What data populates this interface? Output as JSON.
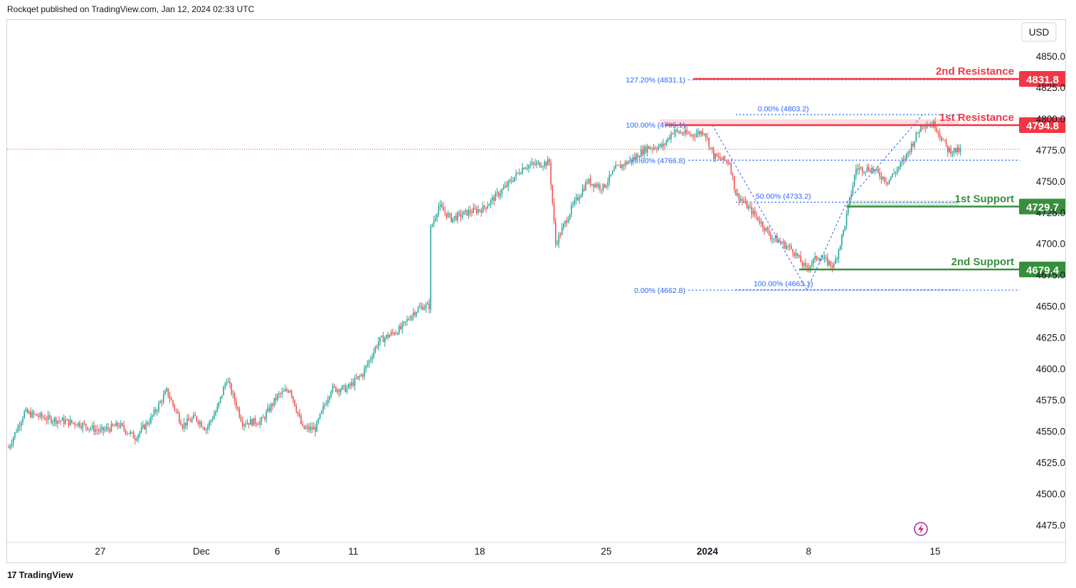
{
  "header": {
    "text": "Rockqet published on TradingView.com, Jan 12, 2024 02:33 UTC"
  },
  "footer": {
    "brand": "TradingView"
  },
  "colors": {
    "up": "#26a69a",
    "down": "#ef5350",
    "resistance": "#f23645",
    "support": "#388e3c",
    "fib": "#2962ff",
    "axis_text": "#131722"
  },
  "chart_data": {
    "type": "candlestick",
    "currency": "USD",
    "y_ticks": [
      "4850.0",
      "4825.0",
      "4800.0",
      "4775.0",
      "4750.0",
      "4725.0",
      "4700.0",
      "4675.0",
      "4650.0",
      "4625.0",
      "4600.0",
      "4575.0",
      "4550.0",
      "4525.0",
      "4500.0",
      "4475.0"
    ],
    "ylim": [
      4461,
      4879
    ],
    "x_ticks": [
      {
        "label": "27",
        "bold": false,
        "index": 58
      },
      {
        "label": "Dec",
        "bold": false,
        "index": 122
      },
      {
        "label": "6",
        "bold": false,
        "index": 170
      },
      {
        "label": "11",
        "bold": false,
        "index": 218
      },
      {
        "label": "18",
        "bold": false,
        "index": 298
      },
      {
        "label": "25",
        "bold": false,
        "index": 378
      },
      {
        "label": "2024",
        "bold": true,
        "index": 442
      },
      {
        "label": "8",
        "bold": false,
        "index": 506
      },
      {
        "label": "15",
        "bold": false,
        "index": 586
      }
    ],
    "xlim": [
      0,
      640
    ],
    "current_price": 4775.5,
    "levels": [
      {
        "name": "2nd Resistance",
        "value": 4831.8,
        "label": "4831.8",
        "type": "resistance",
        "start": 433
      },
      {
        "name": "1st Resistance",
        "value": 4794.8,
        "label": "4794.8",
        "type": "resistance",
        "start": 415
      },
      {
        "name": "1st Support",
        "value": 4729.7,
        "label": "4729.7",
        "type": "support",
        "start": 530
      },
      {
        "name": "2nd Support",
        "value": 4679.4,
        "label": "4679.4",
        "type": "support",
        "start": 500
      }
    ],
    "fib_left": [
      {
        "label": "127.20% (4831.1)",
        "value": 4831.1
      },
      {
        "label": "100.00% (4795.1)",
        "value": 4795.1
      },
      {
        "label": "78.60% (4766.8)",
        "value": 4766.8
      },
      {
        "label": "0.00% (4662.8)",
        "value": 4662.8
      }
    ],
    "fib_right": [
      {
        "label": "0.00% (4803.2)",
        "value": 4803.2
      },
      {
        "label": "50.00% (4733.2)",
        "value": 4733.2
      },
      {
        "label": "100.00% (4663.1)",
        "value": 4663.1
      }
    ],
    "resistance_zone": [
      4794.8,
      4799.5
    ],
    "support_zone": [
      4729.7,
      4734.5
    ],
    "anchors": [
      {
        "index": 0,
        "price": 4537
      },
      {
        "index": 10,
        "price": 4565
      },
      {
        "index": 25,
        "price": 4560
      },
      {
        "index": 45,
        "price": 4556
      },
      {
        "index": 58,
        "price": 4550
      },
      {
        "index": 70,
        "price": 4555
      },
      {
        "index": 80,
        "price": 4545
      },
      {
        "index": 90,
        "price": 4560
      },
      {
        "index": 100,
        "price": 4582
      },
      {
        "index": 110,
        "price": 4555
      },
      {
        "index": 118,
        "price": 4561
      },
      {
        "index": 125,
        "price": 4552
      },
      {
        "index": 132,
        "price": 4568
      },
      {
        "index": 138,
        "price": 4592
      },
      {
        "index": 148,
        "price": 4557
      },
      {
        "index": 160,
        "price": 4558
      },
      {
        "index": 170,
        "price": 4578
      },
      {
        "index": 178,
        "price": 4584
      },
      {
        "index": 186,
        "price": 4552
      },
      {
        "index": 194,
        "price": 4552
      },
      {
        "index": 204,
        "price": 4584
      },
      {
        "index": 214,
        "price": 4584
      },
      {
        "index": 224,
        "price": 4596
      },
      {
        "index": 234,
        "price": 4622
      },
      {
        "index": 248,
        "price": 4632
      },
      {
        "index": 256,
        "price": 4645
      },
      {
        "index": 262,
        "price": 4650
      },
      {
        "index": 266,
        "price": 4650
      },
      {
        "index": 267,
        "price": 4712
      },
      {
        "index": 272,
        "price": 4730
      },
      {
        "index": 280,
        "price": 4720
      },
      {
        "index": 290,
        "price": 4725
      },
      {
        "index": 300,
        "price": 4728
      },
      {
        "index": 314,
        "price": 4745
      },
      {
        "index": 326,
        "price": 4762
      },
      {
        "index": 342,
        "price": 4765
      },
      {
        "index": 346,
        "price": 4700
      },
      {
        "index": 356,
        "price": 4728
      },
      {
        "index": 366,
        "price": 4750
      },
      {
        "index": 376,
        "price": 4745
      },
      {
        "index": 384,
        "price": 4760
      },
      {
        "index": 394,
        "price": 4767
      },
      {
        "index": 404,
        "price": 4777
      },
      {
        "index": 414,
        "price": 4778
      },
      {
        "index": 420,
        "price": 4790
      },
      {
        "index": 432,
        "price": 4787
      },
      {
        "index": 440,
        "price": 4790
      },
      {
        "index": 446,
        "price": 4770
      },
      {
        "index": 456,
        "price": 4765
      },
      {
        "index": 460,
        "price": 4740
      },
      {
        "index": 474,
        "price": 4720
      },
      {
        "index": 482,
        "price": 4706
      },
      {
        "index": 496,
        "price": 4695
      },
      {
        "index": 504,
        "price": 4680
      },
      {
        "index": 512,
        "price": 4690
      },
      {
        "index": 522,
        "price": 4682
      },
      {
        "index": 528,
        "price": 4710
      },
      {
        "index": 536,
        "price": 4760
      },
      {
        "index": 546,
        "price": 4760
      },
      {
        "index": 556,
        "price": 4750
      },
      {
        "index": 566,
        "price": 4766
      },
      {
        "index": 578,
        "price": 4796
      },
      {
        "index": 586,
        "price": 4795
      },
      {
        "index": 594,
        "price": 4775
      },
      {
        "index": 602,
        "price": 4774
      }
    ]
  }
}
